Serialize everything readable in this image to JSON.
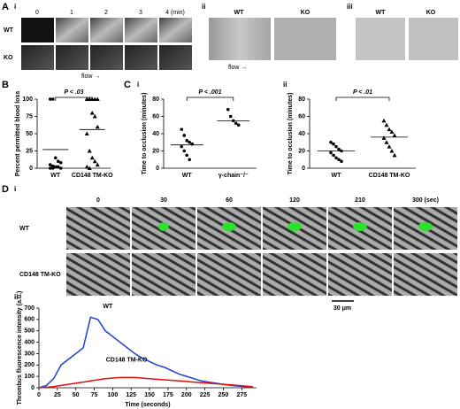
{
  "panels": {
    "A": {
      "label": "A",
      "i": {
        "label": "i",
        "times": [
          "0",
          "1",
          "2",
          "3",
          "4 (min)"
        ],
        "rows": [
          "WT",
          "KO"
        ],
        "flow": "flow →"
      },
      "ii": {
        "label": "ii",
        "cols": [
          "WT",
          "KO"
        ],
        "flow": "flow →"
      },
      "iii": {
        "label": "iii",
        "cols": [
          "WT",
          "KO"
        ]
      }
    },
    "B": {
      "label": "B"
    },
    "C": {
      "label": "C",
      "i": {
        "label": "i"
      },
      "ii": {
        "label": "ii"
      }
    },
    "D": {
      "label": "D",
      "i": {
        "label": "i",
        "times": [
          "0",
          "30",
          "60",
          "120",
          "210",
          "300 (sec)"
        ],
        "rows": [
          "WT",
          "CD148 TM-KO"
        ],
        "scale": "30 μm"
      },
      "ii": {
        "label": "ii"
      }
    }
  },
  "chart_data": [
    {
      "type": "scatter",
      "ylabel": "Percent permitted blood loss",
      "categories": [
        "WT",
        "CD148 TM-KO"
      ],
      "values": [
        [
          100,
          100,
          15,
          10,
          8,
          5,
          3,
          2,
          2,
          0,
          0,
          0
        ],
        [
          100,
          100,
          100,
          100,
          100,
          100,
          100,
          80,
          75,
          60,
          50,
          25,
          15,
          10,
          5,
          2,
          0
        ]
      ],
      "means": [
        27,
        56
      ],
      "markers": [
        "circle",
        "triangle"
      ],
      "annotation": "P < .03",
      "ylim": [
        0,
        100
      ],
      "yticks": [
        0,
        25,
        50,
        75,
        100
      ]
    },
    {
      "type": "scatter",
      "ylabel": "Time to occlusion (minutes)",
      "categories": [
        "WT",
        "γ-chain⁻/⁻"
      ],
      "values": [
        [
          45,
          38,
          32,
          30,
          28,
          25,
          20,
          15,
          10
        ],
        [
          68,
          60,
          55,
          52,
          50
        ]
      ],
      "means": [
        27,
        55
      ],
      "markers": [
        "circle",
        "circle"
      ],
      "annotation": "P < .001",
      "ylim": [
        0,
        80
      ],
      "yticks": [
        0,
        20,
        40,
        60,
        80
      ]
    },
    {
      "type": "scatter",
      "ylabel": "Time to occlusion (minutes)",
      "categories": [
        "WT",
        "CD148 TM-KO"
      ],
      "values": [
        [
          30,
          28,
          25,
          22,
          20,
          18,
          15,
          12,
          10,
          8
        ],
        [
          55,
          50,
          45,
          42,
          38,
          35,
          30,
          25,
          20,
          15
        ]
      ],
      "means": [
        20,
        36
      ],
      "markers": [
        "circle",
        "triangle"
      ],
      "annotation": "P < .01",
      "ylim": [
        0,
        80
      ],
      "yticks": [
        0,
        20,
        40,
        60,
        80
      ]
    },
    {
      "type": "line",
      "ylabel": "Thrombus fluorescence intensity (a.u.)",
      "xlabel": "Time (seconds)",
      "x": [
        0,
        10,
        20,
        30,
        40,
        50,
        60,
        70,
        80,
        90,
        100,
        110,
        120,
        130,
        140,
        150,
        160,
        170,
        180,
        190,
        200,
        210,
        220,
        230,
        240,
        250,
        260,
        270,
        280,
        290
      ],
      "series": [
        {
          "name": "WT",
          "color": "#1f3fd8",
          "values": [
            0,
            20,
            80,
            200,
            250,
            300,
            350,
            620,
            600,
            500,
            450,
            400,
            350,
            300,
            260,
            230,
            200,
            180,
            150,
            120,
            100,
            80,
            60,
            50,
            40,
            30,
            20,
            15,
            10,
            5
          ]
        },
        {
          "name": "CD148 TM-KO",
          "color": "#e01010",
          "values": [
            0,
            5,
            10,
            20,
            30,
            40,
            50,
            60,
            70,
            80,
            85,
            90,
            90,
            90,
            85,
            80,
            75,
            70,
            65,
            60,
            55,
            50,
            45,
            40,
            35,
            30,
            25,
            20,
            15,
            10
          ]
        }
      ],
      "xlim": [
        0,
        295
      ],
      "xticks": [
        0,
        25,
        50,
        75,
        100,
        125,
        150,
        175,
        200,
        225,
        250,
        275
      ],
      "ylim": [
        0,
        700
      ],
      "yticks": [
        0,
        100,
        200,
        300,
        400,
        500,
        600,
        700
      ]
    }
  ]
}
